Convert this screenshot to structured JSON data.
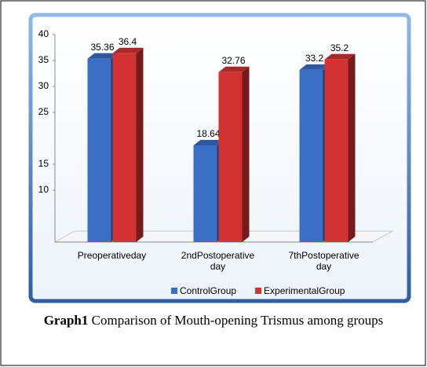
{
  "chart_data": {
    "type": "bar",
    "categories": [
      "Preoperativeday",
      "2ndPostoperative day",
      "7thPostoperative day"
    ],
    "series": [
      {
        "name": "ControlGroup",
        "color": "#3b6fc6",
        "values": [
          35.36,
          18.64,
          33.2
        ]
      },
      {
        "name": "ExperimentalGroup",
        "color": "#d33232",
        "values": [
          36.4,
          32.76,
          35.2
        ]
      }
    ],
    "ylim": [
      0,
      40
    ],
    "yticks": [
      10,
      15,
      25,
      30,
      35,
      40
    ],
    "grid": false,
    "legend": "bottom"
  },
  "caption": {
    "label": "Graph1",
    "text": "Comparison of Mouth-opening Trismus among groups"
  }
}
